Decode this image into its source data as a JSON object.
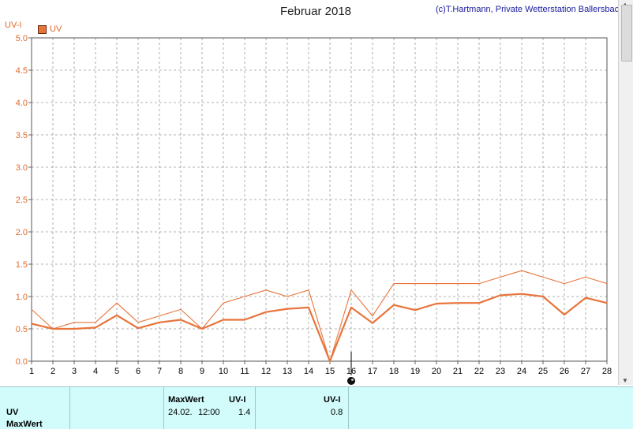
{
  "header": {
    "title": "Februar 2018",
    "credit": "(c)T.Hartmann, Private Wetterstation Ballersbach",
    "y_unit": "UV-I"
  },
  "legend": {
    "label": "UV",
    "color": "#e8743b"
  },
  "chart_data": {
    "type": "line",
    "title": "Februar 2018",
    "xlabel": "",
    "ylabel": "UV-I",
    "x": [
      1,
      2,
      3,
      4,
      5,
      6,
      7,
      8,
      9,
      10,
      11,
      12,
      13,
      14,
      15,
      16,
      17,
      18,
      19,
      20,
      21,
      22,
      23,
      24,
      25,
      26,
      27,
      28
    ],
    "xlim": [
      1,
      28
    ],
    "ylim": [
      0,
      5
    ],
    "y_ticks": [
      "0.0",
      "0.5",
      "1.0",
      "1.5",
      "2.0",
      "2.5",
      "3.0",
      "3.5",
      "4.0",
      "4.5",
      "5.0"
    ],
    "x_ticks": [
      "1",
      "2",
      "3",
      "4",
      "5",
      "6",
      "7",
      "8",
      "9",
      "10",
      "11",
      "12",
      "13",
      "14",
      "15",
      "16",
      "17",
      "18",
      "19",
      "20",
      "21",
      "22",
      "23",
      "24",
      "25",
      "26",
      "27",
      "28"
    ],
    "grid": true,
    "marker_x": 16,
    "series": [
      {
        "name": "UV",
        "color": "#e8743b",
        "values": [
          0.58,
          0.5,
          0.5,
          0.52,
          0.71,
          0.51,
          0.6,
          0.64,
          0.5,
          0.64,
          0.64,
          0.76,
          0.81,
          0.83,
          0.0,
          0.83,
          0.59,
          0.87,
          0.79,
          0.89,
          0.9,
          0.9,
          1.02,
          1.04,
          1.0,
          0.72,
          0.98,
          0.9
        ]
      },
      {
        "color": "#e8743b",
        "values": [
          0.8,
          0.5,
          0.6,
          0.6,
          0.9,
          0.6,
          0.7,
          0.8,
          0.5,
          0.9,
          1.0,
          1.1,
          1.0,
          1.1,
          0.0,
          1.1,
          0.7,
          1.2,
          1.2,
          1.2,
          1.2,
          1.2,
          1.3,
          1.4,
          1.3,
          1.2,
          1.3,
          1.2
        ]
      }
    ]
  },
  "info_panel": {
    "row_label_uv": "UV",
    "row_label_max": "MaxWert",
    "max_header": "MaxWert",
    "unit_header_1": "UV-I",
    "max_date": "24.02.",
    "max_time": "12:00",
    "max_value": "1.4",
    "unit_header_2": "UV-I",
    "mean_value": "0.8"
  }
}
